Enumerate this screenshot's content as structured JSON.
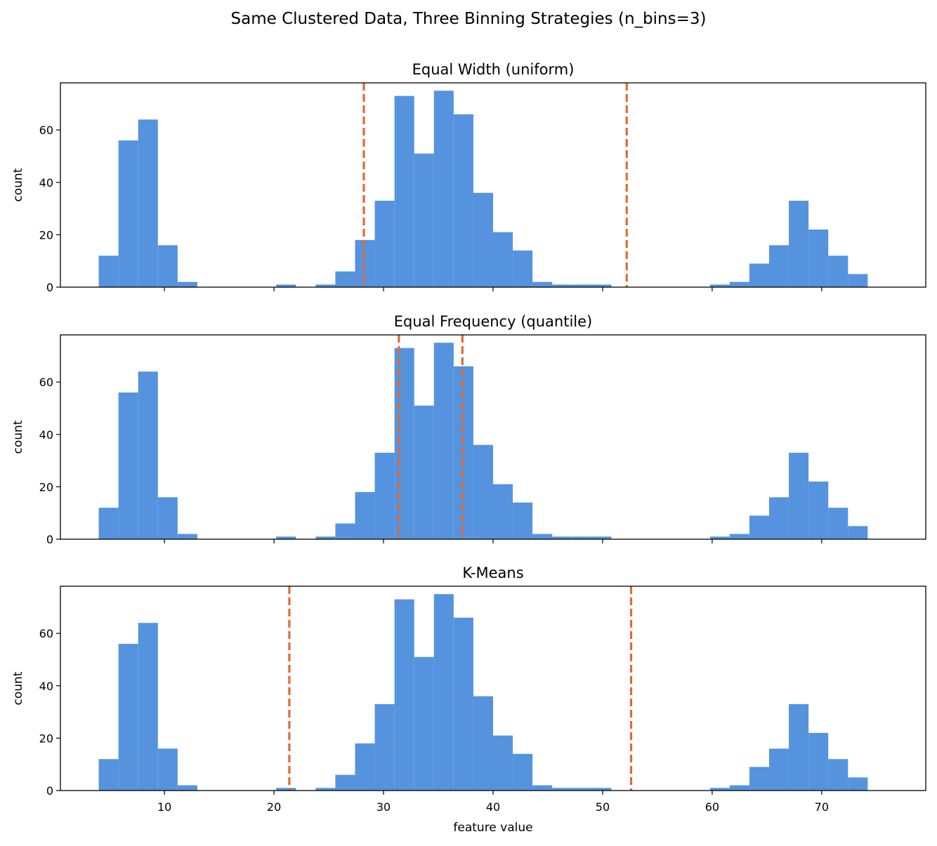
{
  "figure": {
    "title": "Same Clustered Data, Three Binning Strategies (n_bins=3)"
  },
  "colors": {
    "bars": "#5593de",
    "edges": "#e06a35",
    "axis": "#000000"
  },
  "chart_data": [
    {
      "type": "bar",
      "title": "Equal Width (uniform)",
      "xlabel": "",
      "ylabel": "count",
      "ylim": [
        0,
        78
      ],
      "xlim": [
        0.5,
        79.5
      ],
      "xticks": [
        10,
        20,
        30,
        40,
        50,
        60,
        70
      ],
      "yticks": [
        0,
        20,
        40,
        60
      ],
      "grid": false,
      "hist_start": 4.0,
      "bin_width": 1.8,
      "values": [
        12,
        56,
        64,
        16,
        2,
        0,
        0,
        0,
        0,
        1,
        0,
        1,
        6,
        18,
        33,
        73,
        51,
        75,
        66,
        36,
        21,
        14,
        2,
        1,
        1,
        1,
        0,
        0,
        0,
        0,
        0,
        1,
        2,
        9,
        16,
        33,
        22,
        12,
        5
      ],
      "bin_edges": [
        28.2,
        52.2
      ]
    },
    {
      "type": "bar",
      "title": "Equal Frequency (quantile)",
      "xlabel": "",
      "ylabel": "count",
      "ylim": [
        0,
        78
      ],
      "xlim": [
        0.5,
        79.5
      ],
      "xticks": [
        10,
        20,
        30,
        40,
        50,
        60,
        70
      ],
      "yticks": [
        0,
        20,
        40,
        60
      ],
      "grid": false,
      "hist_start": 4.0,
      "bin_width": 1.8,
      "values": [
        12,
        56,
        64,
        16,
        2,
        0,
        0,
        0,
        0,
        1,
        0,
        1,
        6,
        18,
        33,
        73,
        51,
        75,
        66,
        36,
        21,
        14,
        2,
        1,
        1,
        1,
        0,
        0,
        0,
        0,
        0,
        1,
        2,
        9,
        16,
        33,
        22,
        12,
        5
      ],
      "bin_edges": [
        31.4,
        37.2
      ]
    },
    {
      "type": "bar",
      "title": "K-Means",
      "xlabel": "feature value",
      "ylabel": "count",
      "ylim": [
        0,
        78
      ],
      "xlim": [
        0.5,
        79.5
      ],
      "xticks": [
        10,
        20,
        30,
        40,
        50,
        60,
        70
      ],
      "yticks": [
        0,
        20,
        40,
        60
      ],
      "grid": false,
      "hist_start": 4.0,
      "bin_width": 1.8,
      "values": [
        12,
        56,
        64,
        16,
        2,
        0,
        0,
        0,
        0,
        1,
        0,
        1,
        6,
        18,
        33,
        73,
        51,
        75,
        66,
        36,
        21,
        14,
        2,
        1,
        1,
        1,
        0,
        0,
        0,
        0,
        0,
        1,
        2,
        9,
        16,
        33,
        22,
        12,
        5
      ],
      "bin_edges": [
        21.4,
        52.6
      ]
    }
  ]
}
